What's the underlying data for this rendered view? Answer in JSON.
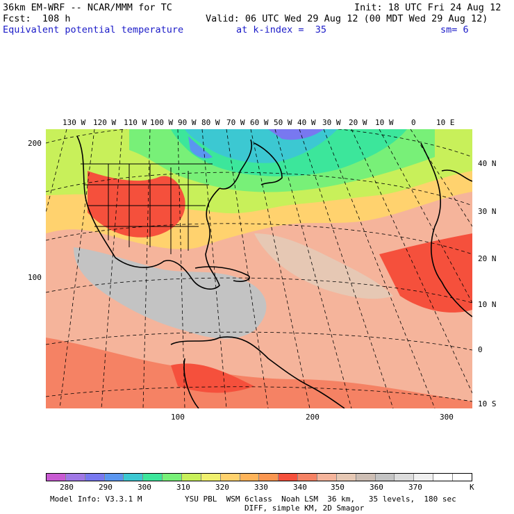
{
  "header": {
    "model": "36km EM-WRF -- NCAR/MMM for TC",
    "init": "Init: 18 UTC Fri 24 Aug 12",
    "fcst": "Fcst:  108 h",
    "valid": "Valid: 06 UTC Wed 29 Aug 12 (00 MDT Wed 29 Aug 12)",
    "field": "Equivalent potential temperature",
    "level": "at k-index =  35",
    "smooth": "sm= 6"
  },
  "map": {
    "lon_labels": [
      "130 W",
      "120 W",
      "110 W",
      "100 W",
      "90 W",
      "80 W",
      "70 W",
      "60 W",
      "50 W",
      "40 W",
      "30 W",
      "20 W",
      "10 W",
      "0",
      "10 E"
    ],
    "lat_labels": [
      "40 N",
      "30 N",
      "20 N",
      "10 N",
      "0",
      "10 S"
    ],
    "grid_left": [
      "200",
      "100"
    ],
    "grid_bottom": [
      "100",
      "200",
      "300"
    ]
  },
  "colorbar": {
    "labels": [
      "280",
      "290",
      "300",
      "310",
      "320",
      "330",
      "340",
      "350",
      "360",
      "370"
    ],
    "unit": "K",
    "colors": [
      "#c85ad2",
      "#a078e6",
      "#7878f0",
      "#5a96f0",
      "#3cc8d2",
      "#3ce69b",
      "#78f078",
      "#c8f05a",
      "#f0f06e",
      "#ffd26e",
      "#ffb45a",
      "#fa9650",
      "#f5503c",
      "#f58264",
      "#f5b49b",
      "#e6c8b4",
      "#cdbeb4",
      "#c3c3c3",
      "#dcdcdc",
      "#f0f0f0",
      "#ffffff",
      "#ffffff"
    ]
  },
  "footer": {
    "model_info": "Model Info: V3.3.1 M",
    "physics": "YSU PBL  WSM 6class  Noah LSM  36 km,   35 levels,  180 sec",
    "diff": "DIFF, simple KM, 2D Smagor"
  }
}
